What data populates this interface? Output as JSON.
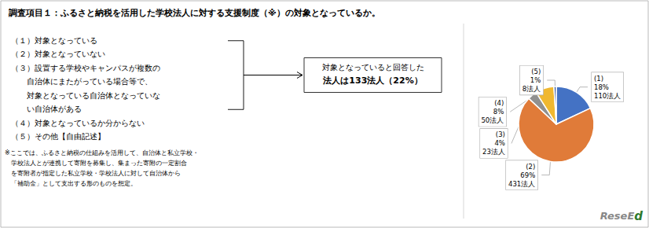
{
  "chart_data": {
    "type": "pie",
    "title": "調査項目１：ふるさと納税を活用した学校法人に対する支援制度（※）の対象となっているか。",
    "values": [
      18,
      69,
      4,
      8,
      1
    ],
    "value_labels": [
      "(1)\n18%\n110法人",
      "(2)\n69%\n431法人",
      "(3)\n4%\n23法人",
      "(4)\n8%\n50法人",
      "(5)\n1%\n8法人"
    ],
    "colors": [
      "#4472C4",
      "#E07B39",
      "#909090",
      "#F0B830",
      "#4060A0"
    ],
    "data_labels": true,
    "annotations": {
      "items": [
        "（１）対象となっている",
        "（２）対象となっていない",
        "（３）設置する学校やキャンパスが複数の",
        "　　自治体にまたがっている場合等で、",
        "　　対象となっている自治体となっていな",
        "　　い自治体がある",
        "（４）対象となっているか分からない",
        "（５）その他【自由記述】"
      ],
      "callout": [
        "対象となっていると回答した",
        "法人は133法人（22%）"
      ],
      "notes": [
        "※ここでは、ふるさと納税の仕組みを活用して、自治体と私立学校・",
        "　学校法人とが連携して寄附を募集し、集まった寄附の一定割合",
        "　を寄附者が指定した私立学校・学校法人に対して自治体から",
        "　「補助金」として支出する形のものを想定。"
      ],
      "logo": "ReseEd"
    }
  }
}
